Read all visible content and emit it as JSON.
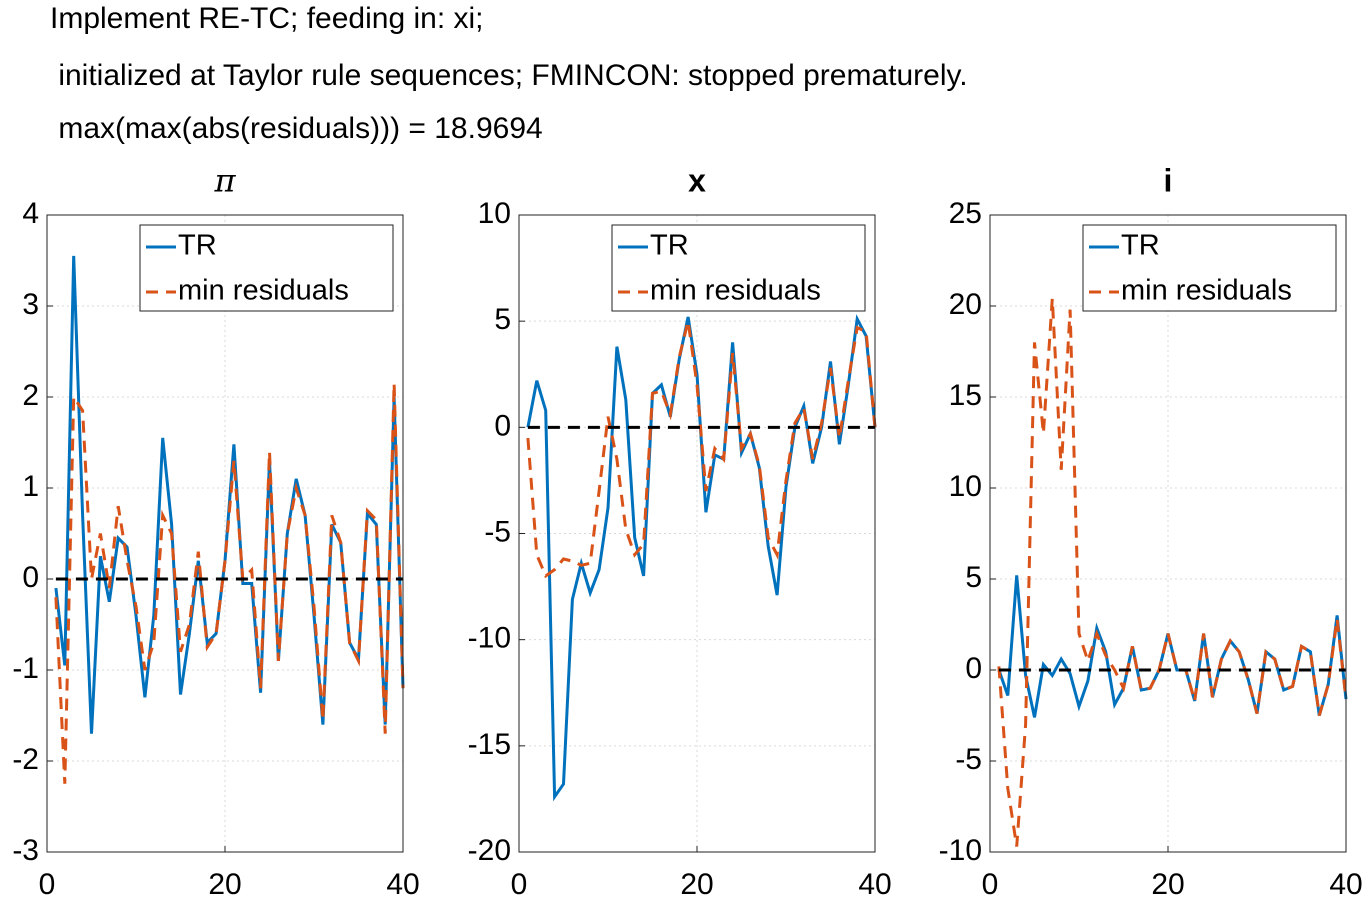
{
  "figure_title": [
    "Implement RE-TC; feeding in: xi;",
    " initialized at Taylor rule sequences; FMINCON: stopped prematurely.",
    " max(max(abs(residuals))) = 18.9694"
  ],
  "chart_data": [
    {
      "type": "line",
      "title": "π",
      "x": [
        1,
        2,
        3,
        4,
        5,
        6,
        7,
        8,
        9,
        10,
        11,
        12,
        13,
        14,
        15,
        16,
        17,
        18,
        19,
        20,
        21,
        22,
        23,
        24,
        25,
        26,
        27,
        28,
        29,
        30,
        31,
        32,
        33,
        34,
        35,
        36,
        37,
        38,
        39,
        40
      ],
      "series": [
        {
          "name": "TR",
          "color": "#0072bd",
          "dash": false,
          "values": [
            -0.1,
            -0.95,
            3.55,
            0.7,
            -1.7,
            0.25,
            -0.25,
            0.45,
            0.35,
            -0.4,
            -1.3,
            -0.4,
            1.55,
            0.6,
            -1.27,
            -0.6,
            0.2,
            -0.7,
            -0.6,
            0.2,
            1.48,
            -0.05,
            -0.05,
            -1.25,
            1.3,
            -0.9,
            0.5,
            1.1,
            0.7,
            -0.4,
            -1.6,
            0.6,
            0.4,
            -0.7,
            -0.88,
            0.72,
            0.6,
            -1.6,
            2.0,
            -1.2
          ]
        },
        {
          "name": "min residuals",
          "color": "#d95319",
          "dash": true,
          "values": [
            -0.2,
            -2.25,
            2.0,
            1.85,
            0.0,
            0.5,
            -0.1,
            0.8,
            0.2,
            -0.3,
            -1.0,
            -0.7,
            0.7,
            0.5,
            -0.8,
            -0.5,
            0.3,
            -0.75,
            -0.6,
            0.2,
            1.3,
            0.0,
            0.1,
            -1.2,
            1.4,
            -0.9,
            0.5,
            1.0,
            0.7,
            -0.3,
            -1.55,
            0.7,
            0.4,
            -0.7,
            -0.9,
            0.75,
            0.65,
            -1.7,
            2.15,
            -1.2
          ]
        }
      ],
      "reference_line": {
        "value": 0,
        "color": "#000000"
      },
      "xlim": [
        0,
        40
      ],
      "xticks": [
        0,
        20,
        40
      ],
      "ylim": [
        -3,
        4
      ],
      "yticks": [
        -3,
        -2,
        -1,
        0,
        1,
        2,
        3,
        4
      ],
      "grid": true,
      "legend": "upper right"
    },
    {
      "type": "line",
      "title": "x",
      "x": [
        1,
        2,
        3,
        4,
        5,
        6,
        7,
        8,
        9,
        10,
        11,
        12,
        13,
        14,
        15,
        16,
        17,
        18,
        19,
        20,
        21,
        22,
        23,
        24,
        25,
        26,
        27,
        28,
        29,
        30,
        31,
        32,
        33,
        34,
        35,
        36,
        37,
        38,
        39,
        40
      ],
      "series": [
        {
          "name": "TR",
          "color": "#0072bd",
          "dash": false,
          "values": [
            0,
            2.2,
            0.8,
            -17.4,
            -16.8,
            -8.1,
            -6.4,
            -7.8,
            -6.7,
            -3.8,
            3.8,
            1.3,
            -5.2,
            -7.0,
            1.6,
            2.0,
            0.5,
            3.2,
            5.2,
            2.5,
            -4.0,
            -1.3,
            -1.5,
            4.0,
            -1.2,
            -0.3,
            -1.9,
            -5.6,
            -7.9,
            -2.8,
            0,
            1.0,
            -1.7,
            0.0,
            3.1,
            -0.8,
            2.0,
            5.1,
            4.3,
            0
          ]
        },
        {
          "name": "min residuals",
          "color": "#d95319",
          "dash": true,
          "values": [
            -0.5,
            -6.0,
            -7.0,
            -6.7,
            -6.2,
            -6.3,
            -6.5,
            -6.4,
            -3.0,
            0.5,
            -1.5,
            -4.8,
            -6.0,
            -5.5,
            1.6,
            1.7,
            0.6,
            3.3,
            5.0,
            2.0,
            -3.0,
            -1.0,
            -1.5,
            3.5,
            -1.0,
            -0.3,
            -1.8,
            -5.2,
            -6.0,
            -2.5,
            0.2,
            0.9,
            -1.5,
            0.2,
            2.8,
            -0.5,
            2.2,
            4.7,
            4.5,
            0
          ]
        }
      ],
      "reference_line": {
        "value": 0,
        "color": "#000000"
      },
      "xlim": [
        0,
        40
      ],
      "xticks": [
        0,
        20,
        40
      ],
      "ylim": [
        -20,
        10
      ],
      "yticks": [
        -20,
        -15,
        -10,
        -5,
        0,
        5,
        10
      ],
      "grid": true,
      "legend": "upper right"
    },
    {
      "type": "line",
      "title": "i",
      "x": [
        1,
        2,
        3,
        4,
        5,
        6,
        7,
        8,
        9,
        10,
        11,
        12,
        13,
        14,
        15,
        16,
        17,
        18,
        19,
        20,
        21,
        22,
        23,
        24,
        25,
        26,
        27,
        28,
        29,
        30,
        31,
        32,
        33,
        34,
        35,
        36,
        37,
        38,
        39,
        40
      ],
      "series": [
        {
          "name": "TR",
          "color": "#0072bd",
          "dash": false,
          "values": [
            0,
            -1.4,
            5.2,
            -0.3,
            -2.6,
            0.3,
            -0.3,
            0.6,
            -0.2,
            -2.0,
            -0.6,
            2.3,
            1.0,
            -1.9,
            -1.0,
            1.3,
            -1.1,
            -1.0,
            0.0,
            2.0,
            0.0,
            0.0,
            -1.7,
            2.0,
            -1.5,
            0.6,
            1.6,
            1.0,
            -0.5,
            -2.4,
            1.0,
            0.6,
            -1.1,
            -0.9,
            1.3,
            1.0,
            -2.5,
            -0.8,
            3.0,
            -1.6
          ]
        },
        {
          "name": "min residuals",
          "color": "#d95319",
          "dash": true,
          "values": [
            0.2,
            -6.5,
            -9.7,
            -3.0,
            18.0,
            13.0,
            20.4,
            11.0,
            19.8,
            2.0,
            0.5,
            2.0,
            0.8,
            0.0,
            -1.0,
            1.3,
            -1.1,
            -1.0,
            0.0,
            2.0,
            0.0,
            0.0,
            -1.7,
            2.0,
            -1.5,
            0.6,
            1.6,
            1.0,
            -0.5,
            -2.4,
            1.0,
            0.6,
            -1.1,
            -0.9,
            1.3,
            1.0,
            -2.5,
            -0.8,
            2.8,
            -1.6
          ]
        }
      ],
      "reference_line": {
        "value": 0,
        "color": "#000000"
      },
      "xlim": [
        0,
        40
      ],
      "xticks": [
        0,
        20,
        40
      ],
      "ylim": [
        -10,
        25
      ],
      "yticks": [
        -10,
        -5,
        0,
        5,
        10,
        15,
        20,
        25
      ],
      "grid": true,
      "legend": "upper right"
    }
  ]
}
